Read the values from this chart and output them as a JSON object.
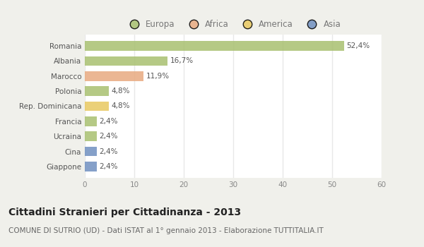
{
  "categories": [
    "Romania",
    "Albania",
    "Marocco",
    "Polonia",
    "Rep. Dominicana",
    "Francia",
    "Ucraina",
    "Cina",
    "Giappone"
  ],
  "values": [
    52.4,
    16.7,
    11.9,
    4.8,
    4.8,
    2.4,
    2.4,
    2.4,
    2.4
  ],
  "labels": [
    "52,4%",
    "16,7%",
    "11,9%",
    "4,8%",
    "4,8%",
    "2,4%",
    "2,4%",
    "2,4%",
    "2,4%"
  ],
  "colors": [
    "#a8c070",
    "#a8c070",
    "#e8aa80",
    "#a8c070",
    "#e8c860",
    "#a8c070",
    "#a8c070",
    "#7090c0",
    "#7090c0"
  ],
  "legend_labels": [
    "Europa",
    "Africa",
    "America",
    "Asia"
  ],
  "legend_colors": [
    "#a8c070",
    "#e8aa80",
    "#e8c860",
    "#7090c0"
  ],
  "xlim": [
    0,
    60
  ],
  "xticks": [
    0,
    10,
    20,
    30,
    40,
    50,
    60
  ],
  "title": "Cittadini Stranieri per Cittadinanza - 2013",
  "subtitle": "COMUNE DI SUTRIO (UD) - Dati ISTAT al 1° gennaio 2013 - Elaborazione TUTTITALIA.IT",
  "bg_color": "#f0f0eb",
  "plot_bg_color": "#ffffff",
  "bar_height": 0.65,
  "grid_color": "#e8e8e8",
  "title_fontsize": 10,
  "subtitle_fontsize": 7.5,
  "tick_fontsize": 7.5,
  "label_fontsize": 7.5,
  "legend_fontsize": 8.5
}
